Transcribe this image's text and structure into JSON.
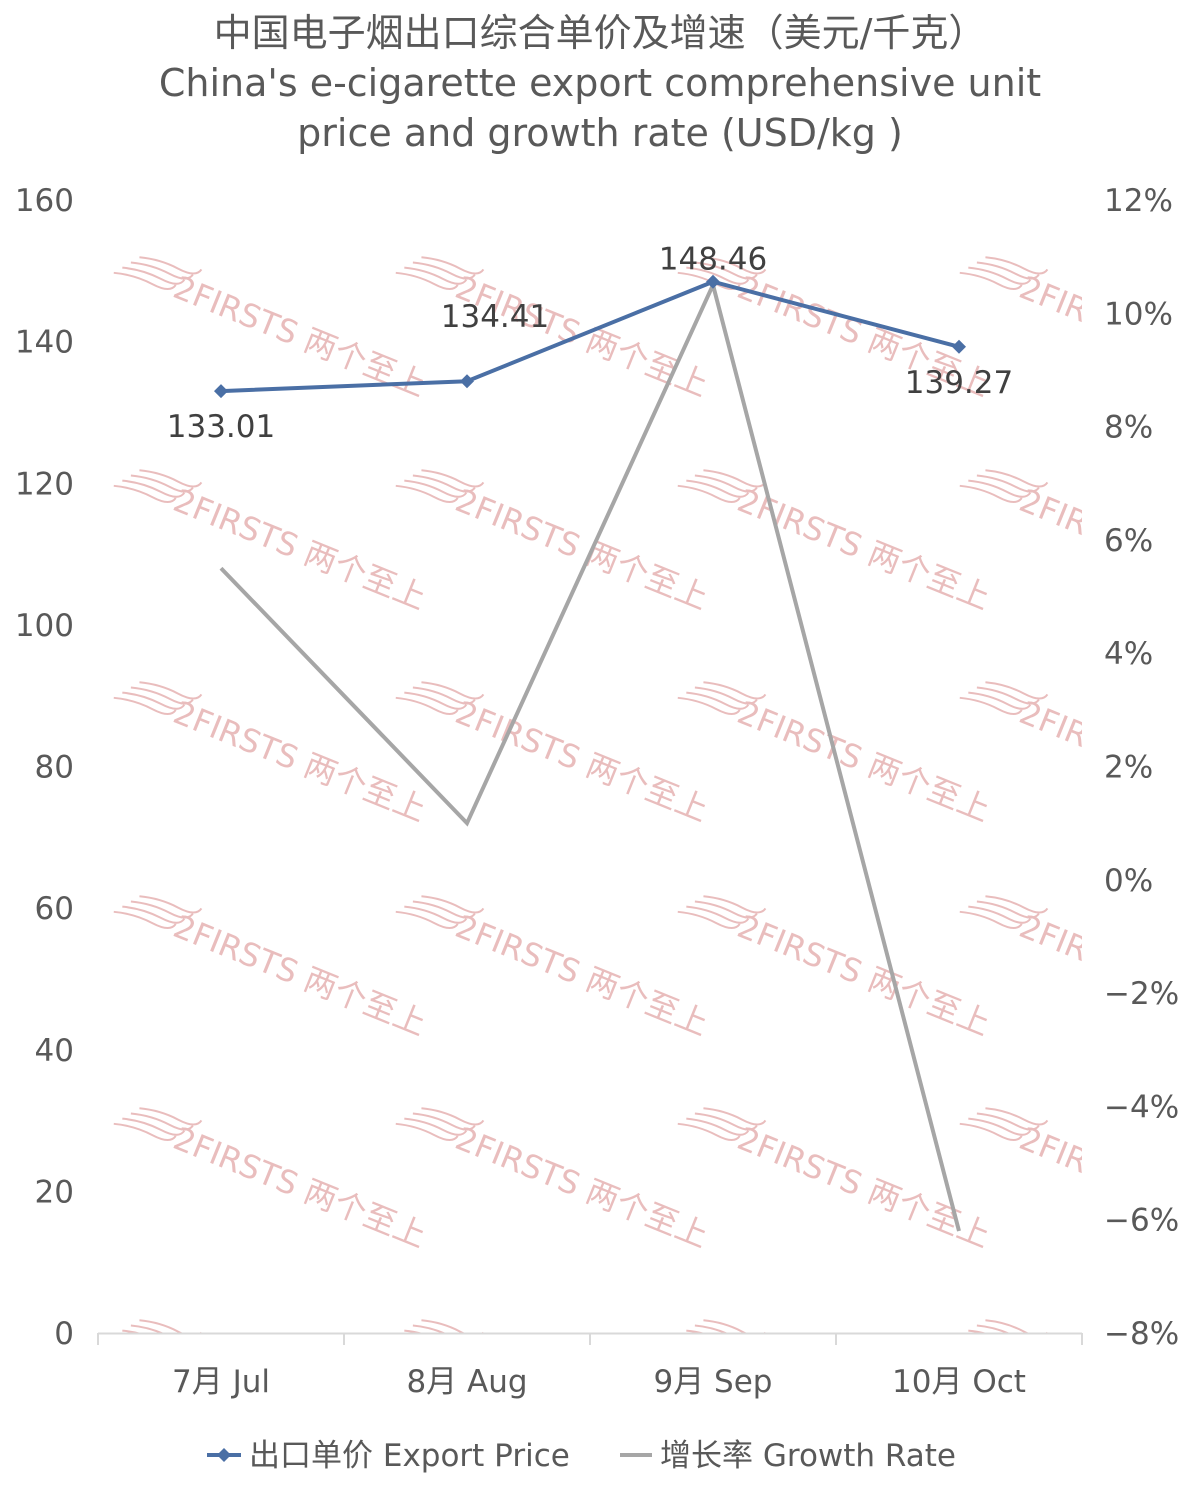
{
  "chart_data": {
    "type": "line",
    "title_zh": "中国电子烟出口综合单价及增速（美元/千克）",
    "title_en_line1": "China's e-cigarette export comprehensive unit",
    "title_en_line2": "price and growth rate (USD/kg )",
    "categories": [
      "7月 Jul",
      "8月 Aug",
      "9月 Sep",
      "10月 Oct"
    ],
    "y_left": {
      "min": 0,
      "max": 160,
      "step": 20,
      "ticks": [
        "0",
        "20",
        "40",
        "60",
        "80",
        "100",
        "120",
        "140",
        "160"
      ]
    },
    "y_right": {
      "min": -8,
      "max": 12,
      "step": 2,
      "ticks": [
        "−8%",
        "−6%",
        "−4%",
        "−2%",
        "0%",
        "2%",
        "4%",
        "6%",
        "8%",
        "10%",
        "12%"
      ]
    },
    "series": [
      {
        "name": "出口单价 Export Price",
        "axis": "left",
        "color": "#4a6fa5",
        "values": [
          133.01,
          134.41,
          148.46,
          139.27
        ],
        "labels": [
          "133.01",
          "134.41",
          "148.46",
          "139.27"
        ]
      },
      {
        "name": "增长率 Growth Rate",
        "axis": "right",
        "color": "#a6a6a6",
        "values": [
          5.5,
          1.0,
          10.5,
          -6.2
        ]
      }
    ],
    "legend_position": "bottom",
    "grid": false
  },
  "watermark": {
    "text": "2FIRSTS 两个至上",
    "color": "#e6b2b2"
  }
}
